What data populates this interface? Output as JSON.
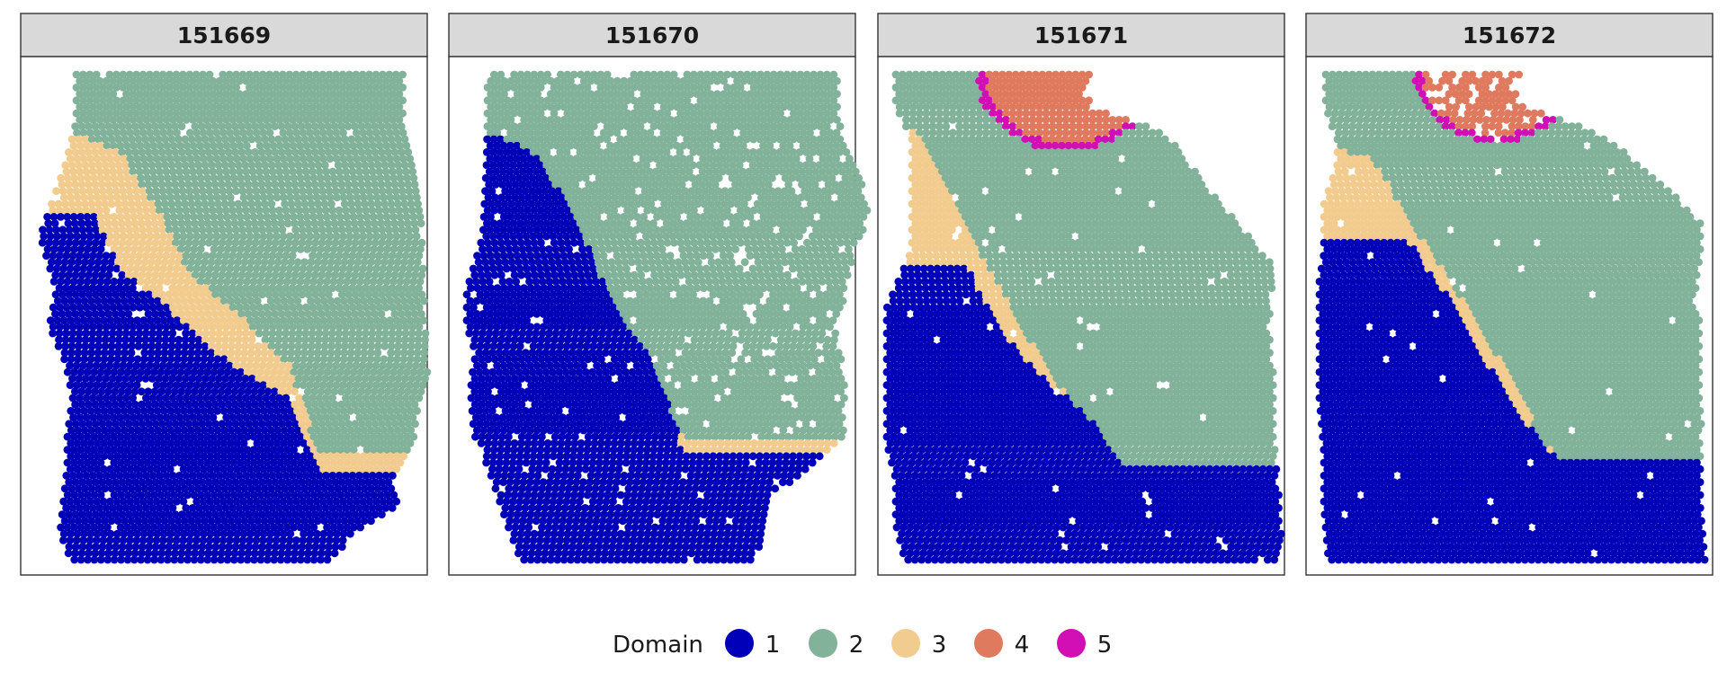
{
  "chart_data": {
    "type": "scatter",
    "panels": [
      {
        "title": "151669"
      },
      {
        "title": "151670"
      },
      {
        "title": "151671"
      },
      {
        "title": "151672"
      }
    ],
    "legend": {
      "title": "Domain",
      "position": "bottom",
      "entries": [
        {
          "label": "1",
          "color": "#0000B8"
        },
        {
          "label": "2",
          "color": "#82B29A"
        },
        {
          "label": "3",
          "color": "#F2CC8F"
        },
        {
          "label": "4",
          "color": "#E07A5F"
        },
        {
          "label": "5",
          "color": "#D10FB5"
        }
      ]
    },
    "grid": false
  }
}
